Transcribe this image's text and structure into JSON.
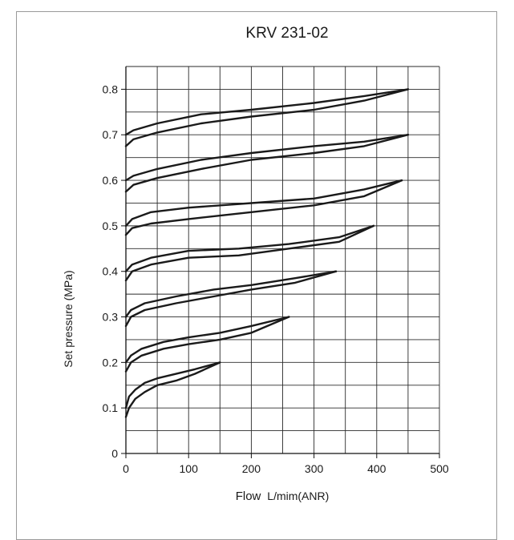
{
  "chart_data": {
    "type": "line",
    "title": "KRV 231-02",
    "xlabel": {
      "main": "Flow",
      "unit": "L/mim(ANR)"
    },
    "ylabel": "Set pressure  (MPa)",
    "xlim": [
      0,
      500
    ],
    "ylim": [
      0,
      0.85
    ],
    "x_ticks": [
      "0",
      "100",
      "200",
      "300",
      "400",
      "500"
    ],
    "y_ticks": [
      "0",
      "0.1",
      "0.2",
      "0.3",
      "0.4",
      "0.5",
      "0.6",
      "0.7",
      "0.8"
    ],
    "x_gridlines": [
      0,
      50,
      100,
      150,
      200,
      250,
      300,
      350,
      400,
      450,
      500
    ],
    "y_gridlines": [
      0.05,
      0.1,
      0.15,
      0.2,
      0.25,
      0.3,
      0.35,
      0.4,
      0.45,
      0.5,
      0.55,
      0.6,
      0.65,
      0.7,
      0.75,
      0.8,
      0.85
    ],
    "grid": true,
    "line_color": "#1a1a1a",
    "series": [
      {
        "upper": [
          [
            0,
            0.1
          ],
          [
            5,
            0.125
          ],
          [
            15,
            0.14
          ],
          [
            30,
            0.155
          ],
          [
            50,
            0.165
          ],
          [
            80,
            0.175
          ],
          [
            110,
            0.185
          ],
          [
            150,
            0.2
          ]
        ],
        "lower": [
          [
            0,
            0.08
          ],
          [
            5,
            0.1
          ],
          [
            15,
            0.12
          ],
          [
            30,
            0.135
          ],
          [
            50,
            0.15
          ],
          [
            80,
            0.16
          ],
          [
            110,
            0.175
          ],
          [
            150,
            0.2
          ]
        ]
      },
      {
        "upper": [
          [
            0,
            0.2
          ],
          [
            8,
            0.215
          ],
          [
            25,
            0.23
          ],
          [
            60,
            0.245
          ],
          [
            100,
            0.255
          ],
          [
            150,
            0.265
          ],
          [
            200,
            0.28
          ],
          [
            260,
            0.3
          ]
        ],
        "lower": [
          [
            0,
            0.18
          ],
          [
            8,
            0.2
          ],
          [
            25,
            0.215
          ],
          [
            60,
            0.23
          ],
          [
            100,
            0.24
          ],
          [
            150,
            0.25
          ],
          [
            200,
            0.265
          ],
          [
            260,
            0.3
          ]
        ]
      },
      {
        "upper": [
          [
            0,
            0.3
          ],
          [
            8,
            0.315
          ],
          [
            30,
            0.33
          ],
          [
            80,
            0.345
          ],
          [
            140,
            0.36
          ],
          [
            200,
            0.37
          ],
          [
            270,
            0.385
          ],
          [
            335,
            0.4
          ]
        ],
        "lower": [
          [
            0,
            0.28
          ],
          [
            8,
            0.3
          ],
          [
            30,
            0.315
          ],
          [
            80,
            0.33
          ],
          [
            140,
            0.345
          ],
          [
            200,
            0.36
          ],
          [
            270,
            0.375
          ],
          [
            335,
            0.4
          ]
        ]
      },
      {
        "upper": [
          [
            0,
            0.4
          ],
          [
            10,
            0.415
          ],
          [
            40,
            0.43
          ],
          [
            100,
            0.445
          ],
          [
            180,
            0.45
          ],
          [
            260,
            0.46
          ],
          [
            340,
            0.475
          ],
          [
            395,
            0.5
          ]
        ],
        "lower": [
          [
            0,
            0.38
          ],
          [
            10,
            0.4
          ],
          [
            40,
            0.415
          ],
          [
            100,
            0.43
          ],
          [
            180,
            0.435
          ],
          [
            260,
            0.45
          ],
          [
            340,
            0.465
          ],
          [
            395,
            0.5
          ]
        ]
      },
      {
        "upper": [
          [
            0,
            0.5
          ],
          [
            10,
            0.515
          ],
          [
            40,
            0.53
          ],
          [
            100,
            0.54
          ],
          [
            200,
            0.55
          ],
          [
            300,
            0.56
          ],
          [
            380,
            0.58
          ],
          [
            440,
            0.6
          ]
        ],
        "lower": [
          [
            0,
            0.48
          ],
          [
            10,
            0.495
          ],
          [
            40,
            0.505
          ],
          [
            100,
            0.515
          ],
          [
            200,
            0.53
          ],
          [
            300,
            0.545
          ],
          [
            380,
            0.565
          ],
          [
            440,
            0.6
          ]
        ]
      },
      {
        "upper": [
          [
            0,
            0.6
          ],
          [
            12,
            0.61
          ],
          [
            50,
            0.625
          ],
          [
            120,
            0.645
          ],
          [
            200,
            0.66
          ],
          [
            300,
            0.675
          ],
          [
            380,
            0.685
          ],
          [
            450,
            0.7
          ]
        ],
        "lower": [
          [
            0,
            0.575
          ],
          [
            12,
            0.59
          ],
          [
            50,
            0.605
          ],
          [
            120,
            0.625
          ],
          [
            200,
            0.645
          ],
          [
            300,
            0.66
          ],
          [
            380,
            0.675
          ],
          [
            450,
            0.7
          ]
        ]
      },
      {
        "upper": [
          [
            0,
            0.7
          ],
          [
            12,
            0.71
          ],
          [
            50,
            0.725
          ],
          [
            120,
            0.745
          ],
          [
            200,
            0.755
          ],
          [
            300,
            0.77
          ],
          [
            380,
            0.785
          ],
          [
            450,
            0.8
          ]
        ],
        "lower": [
          [
            0,
            0.675
          ],
          [
            12,
            0.69
          ],
          [
            50,
            0.705
          ],
          [
            120,
            0.725
          ],
          [
            200,
            0.74
          ],
          [
            300,
            0.755
          ],
          [
            380,
            0.775
          ],
          [
            450,
            0.8
          ]
        ]
      }
    ]
  }
}
